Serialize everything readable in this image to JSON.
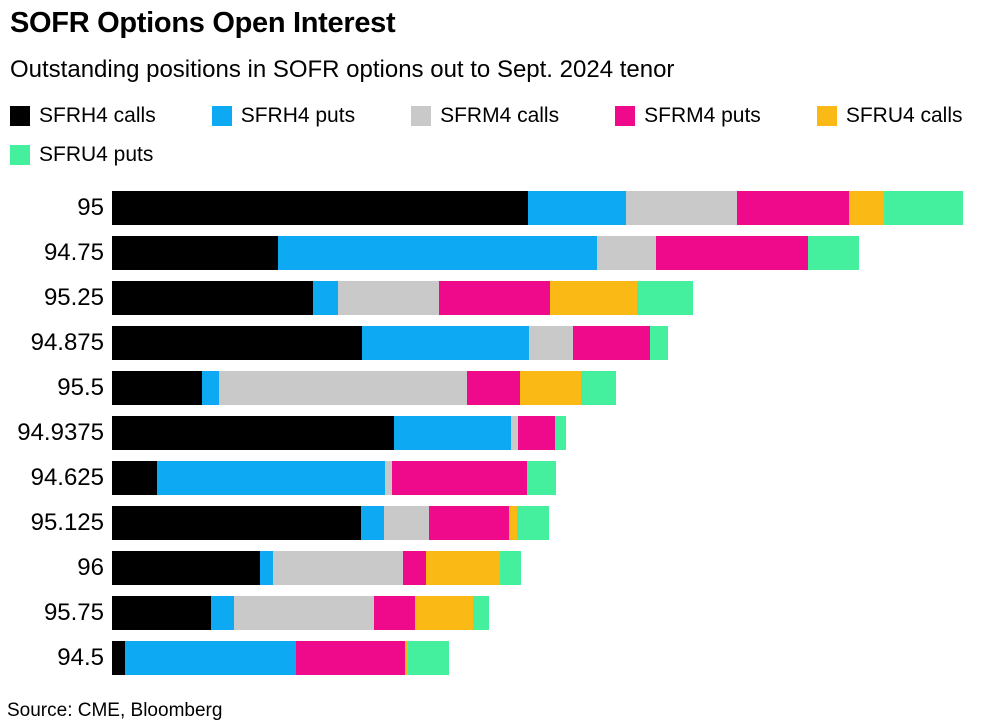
{
  "header": {
    "title": "SOFR Options Open Interest",
    "subtitle": "Outstanding positions in SOFR options out to Sept. 2024 tenor"
  },
  "footer": {
    "source": "Source: CME, Bloomberg"
  },
  "chart_data": {
    "type": "bar",
    "orientation": "horizontal",
    "stacked": true,
    "title": "SOFR Options Open Interest",
    "subtitle": "Outstanding positions in SOFR options out to Sept. 2024 tenor",
    "xlabel": "",
    "ylabel": "",
    "legend_position": "top",
    "grid": false,
    "note": "no numeric x-axis shown in image; values are pixel-proportional estimates of bar segment lengths",
    "categories": [
      "95",
      "94.75",
      "95.25",
      "94.875",
      "95.5",
      "94.9375",
      "94.625",
      "95.125",
      "96",
      "95.75",
      "94.5"
    ],
    "series": [
      {
        "name": "SFRH4 calls",
        "color": "#000000",
        "values": [
          416,
          166,
          201,
          250,
          90,
          282,
          45,
          249,
          148,
          99,
          13
        ]
      },
      {
        "name": "SFRH4 puts",
        "color": "#0da9f2",
        "values": [
          98,
          319,
          25,
          167,
          17,
          117,
          228,
          23,
          13,
          23,
          171
        ]
      },
      {
        "name": "SFRM4 calls",
        "color": "#c9c9c9",
        "values": [
          111,
          59,
          101,
          44,
          248,
          7,
          7,
          45,
          130,
          140,
          0
        ]
      },
      {
        "name": "SFRM4 puts",
        "color": "#ef0a8c",
        "values": [
          112,
          152,
          111,
          77,
          53,
          37,
          135,
          80,
          23,
          41,
          109
        ]
      },
      {
        "name": "SFRU4 calls",
        "color": "#fbb916",
        "values": [
          35,
          0,
          87,
          0,
          61,
          0,
          0,
          8,
          74,
          58,
          3
        ]
      },
      {
        "name": "SFRU4 puts",
        "color": "#44f09e",
        "values": [
          79,
          51,
          56,
          18,
          35,
          11,
          29,
          32,
          21,
          16,
          41
        ]
      }
    ]
  }
}
